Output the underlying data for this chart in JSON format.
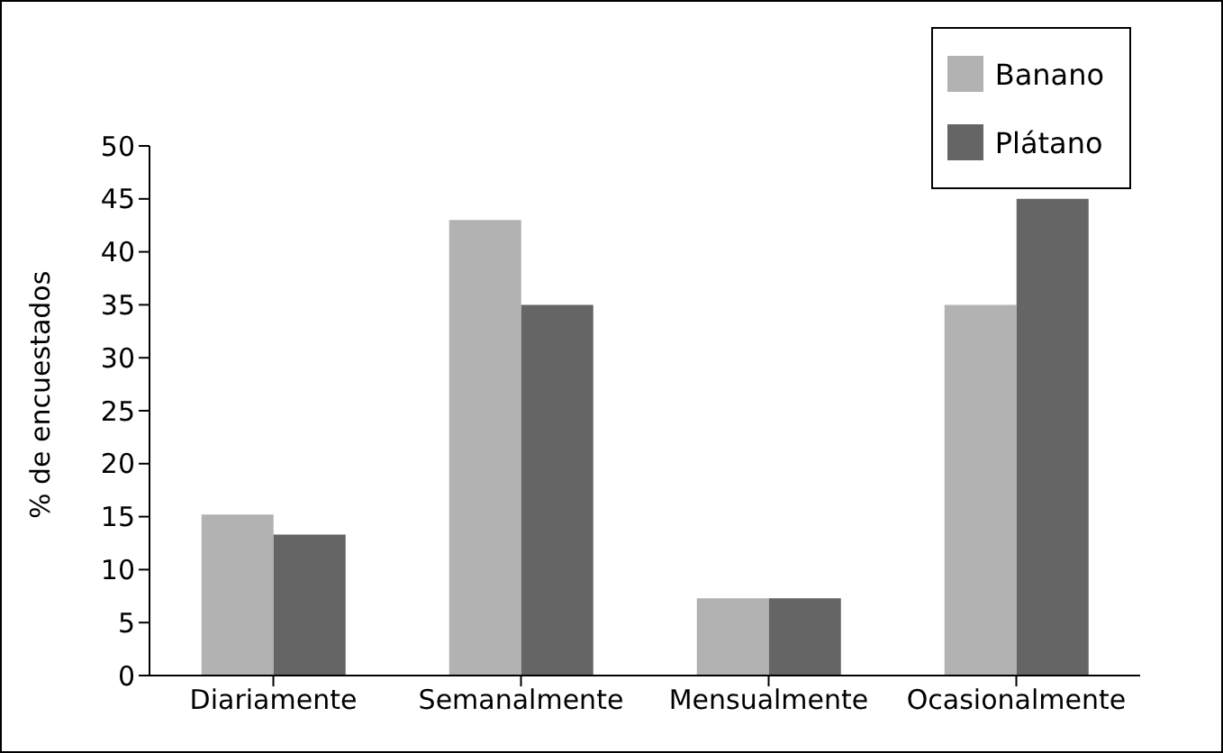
{
  "chart_data": {
    "type": "bar",
    "ylabel": "% de encuestados",
    "categories": [
      "Diariamente",
      "Semanalmente",
      "Mensualmente",
      "Ocasionalmente"
    ],
    "series": [
      {
        "name": "Banano",
        "color": "#b2b2b2",
        "values": [
          15.2,
          43,
          7.3,
          35
        ]
      },
      {
        "name": "Plátano",
        "color": "#656565",
        "values": [
          13.3,
          35,
          7.3,
          45
        ]
      }
    ],
    "ylim": [
      0,
      50
    ],
    "yticks": [
      0,
      5,
      10,
      15,
      20,
      25,
      30,
      35,
      40,
      45,
      50
    ],
    "grid": false,
    "legend": "top right"
  }
}
